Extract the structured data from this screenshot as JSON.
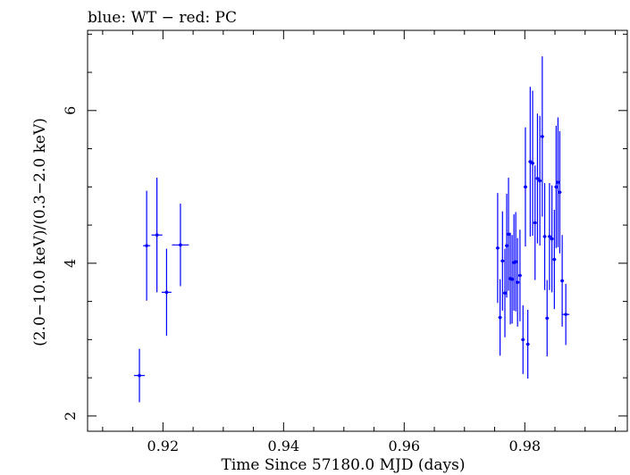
{
  "chart_data": {
    "type": "scatter",
    "title": "blue: WT − red: PC",
    "xlabel": "Time Since 57180.0 MJD (days)",
    "ylabel": "(2.0−10.0 keV)/(0.3−2.0 keV)",
    "xlim": [
      0.9075,
      0.997
    ],
    "ylim": [
      1.8,
      7.05
    ],
    "x_major_ticks": [
      0.92,
      0.94,
      0.96,
      0.98
    ],
    "x_tick_labels": [
      "0.92",
      "0.94",
      "0.96",
      "0.98"
    ],
    "y_major_ticks": [
      2,
      4,
      6
    ],
    "y_tick_labels": [
      "2",
      "4",
      "6"
    ],
    "grid": false,
    "colors": {
      "WT": "#0000ff",
      "axes": "#000000"
    },
    "series": [
      {
        "name": "WT",
        "points": [
          {
            "x": 0.9161,
            "xerr": 0.0009,
            "y": 2.53,
            "yerr_lo": 0.35,
            "yerr_hi": 0.35
          },
          {
            "x": 0.9173,
            "xerr": 0.0006,
            "y": 4.23,
            "yerr_lo": 0.72,
            "yerr_hi": 0.72
          },
          {
            "x": 0.919,
            "xerr": 0.0009,
            "y": 4.37,
            "yerr_lo": 0.75,
            "yerr_hi": 0.75
          },
          {
            "x": 0.9206,
            "xerr": 0.0008,
            "y": 3.62,
            "yerr_lo": 0.57,
            "yerr_hi": 0.57
          },
          {
            "x": 0.9229,
            "xerr": 0.0014,
            "y": 4.24,
            "yerr_lo": 0.54,
            "yerr_hi": 0.54
          },
          {
            "x": 0.9755,
            "xerr": 0.0003,
            "y": 4.2,
            "yerr_lo": 0.72,
            "yerr_hi": 0.72
          },
          {
            "x": 0.9759,
            "xerr": 0.0003,
            "y": 3.29,
            "yerr_lo": 0.5,
            "yerr_hi": 0.5
          },
          {
            "x": 0.9763,
            "xerr": 0.0003,
            "y": 4.03,
            "yerr_lo": 0.65,
            "yerr_hi": 0.65
          },
          {
            "x": 0.9767,
            "xerr": 0.0003,
            "y": 3.61,
            "yerr_lo": 0.58,
            "yerr_hi": 0.58
          },
          {
            "x": 0.977,
            "xerr": 0.0003,
            "y": 4.23,
            "yerr_lo": 0.68,
            "yerr_hi": 0.68
          },
          {
            "x": 0.9773,
            "xerr": 0.0003,
            "y": 4.38,
            "yerr_lo": 0.74,
            "yerr_hi": 0.74
          },
          {
            "x": 0.9776,
            "xerr": 0.0003,
            "y": 3.8,
            "yerr_lo": 0.6,
            "yerr_hi": 0.6
          },
          {
            "x": 0.9779,
            "xerr": 0.0003,
            "y": 3.79,
            "yerr_lo": 0.58,
            "yerr_hi": 0.58
          },
          {
            "x": 0.9782,
            "xerr": 0.0003,
            "y": 4.01,
            "yerr_lo": 0.63,
            "yerr_hi": 0.63
          },
          {
            "x": 0.9785,
            "xerr": 0.0003,
            "y": 4.02,
            "yerr_lo": 0.65,
            "yerr_hi": 0.65
          },
          {
            "x": 0.9788,
            "xerr": 0.0003,
            "y": 3.75,
            "yerr_lo": 0.58,
            "yerr_hi": 0.58
          },
          {
            "x": 0.9792,
            "xerr": 0.0003,
            "y": 3.84,
            "yerr_lo": 0.6,
            "yerr_hi": 0.6
          },
          {
            "x": 0.9797,
            "xerr": 0.0003,
            "y": 3.0,
            "yerr_lo": 0.45,
            "yerr_hi": 0.45
          },
          {
            "x": 0.9801,
            "xerr": 0.0003,
            "y": 5.0,
            "yerr_lo": 0.78,
            "yerr_hi": 0.78
          },
          {
            "x": 0.9805,
            "xerr": 0.0003,
            "y": 2.94,
            "yerr_lo": 0.45,
            "yerr_hi": 0.45
          },
          {
            "x": 0.9809,
            "xerr": 0.0003,
            "y": 5.33,
            "yerr_lo": 0.98,
            "yerr_hi": 0.98
          },
          {
            "x": 0.9813,
            "xerr": 0.0003,
            "y": 5.31,
            "yerr_lo": 0.95,
            "yerr_hi": 0.95
          },
          {
            "x": 0.9817,
            "xerr": 0.0003,
            "y": 4.53,
            "yerr_lo": 0.75,
            "yerr_hi": 0.75
          },
          {
            "x": 0.9821,
            "xerr": 0.0003,
            "y": 5.11,
            "yerr_lo": 0.85,
            "yerr_hi": 0.85
          },
          {
            "x": 0.9825,
            "xerr": 0.0003,
            "y": 5.08,
            "yerr_lo": 0.85,
            "yerr_hi": 0.85
          },
          {
            "x": 0.9829,
            "xerr": 0.0003,
            "y": 5.66,
            "yerr_lo": 1.05,
            "yerr_hi": 1.05
          },
          {
            "x": 0.9833,
            "xerr": 0.0003,
            "y": 4.35,
            "yerr_lo": 0.7,
            "yerr_hi": 0.7
          },
          {
            "x": 0.9837,
            "xerr": 0.0003,
            "y": 3.28,
            "yerr_lo": 0.5,
            "yerr_hi": 0.5
          },
          {
            "x": 0.9841,
            "xerr": 0.0003,
            "y": 4.35,
            "yerr_lo": 0.7,
            "yerr_hi": 0.7
          },
          {
            "x": 0.9845,
            "xerr": 0.0003,
            "y": 4.32,
            "yerr_lo": 0.7,
            "yerr_hi": 0.7
          },
          {
            "x": 0.9849,
            "xerr": 0.0003,
            "y": 4.05,
            "yerr_lo": 0.65,
            "yerr_hi": 0.65
          },
          {
            "x": 0.9852,
            "xerr": 0.0003,
            "y": 5.0,
            "yerr_lo": 0.8,
            "yerr_hi": 0.8
          },
          {
            "x": 0.9855,
            "xerr": 0.0003,
            "y": 5.06,
            "yerr_lo": 0.85,
            "yerr_hi": 0.85
          },
          {
            "x": 0.9858,
            "xerr": 0.0003,
            "y": 4.93,
            "yerr_lo": 0.8,
            "yerr_hi": 0.8
          },
          {
            "x": 0.9862,
            "xerr": 0.0003,
            "y": 3.77,
            "yerr_lo": 0.6,
            "yerr_hi": 0.6
          },
          {
            "x": 0.9868,
            "xerr": 0.0006,
            "y": 3.33,
            "yerr_lo": 0.4,
            "yerr_hi": 0.4
          }
        ]
      }
    ]
  }
}
